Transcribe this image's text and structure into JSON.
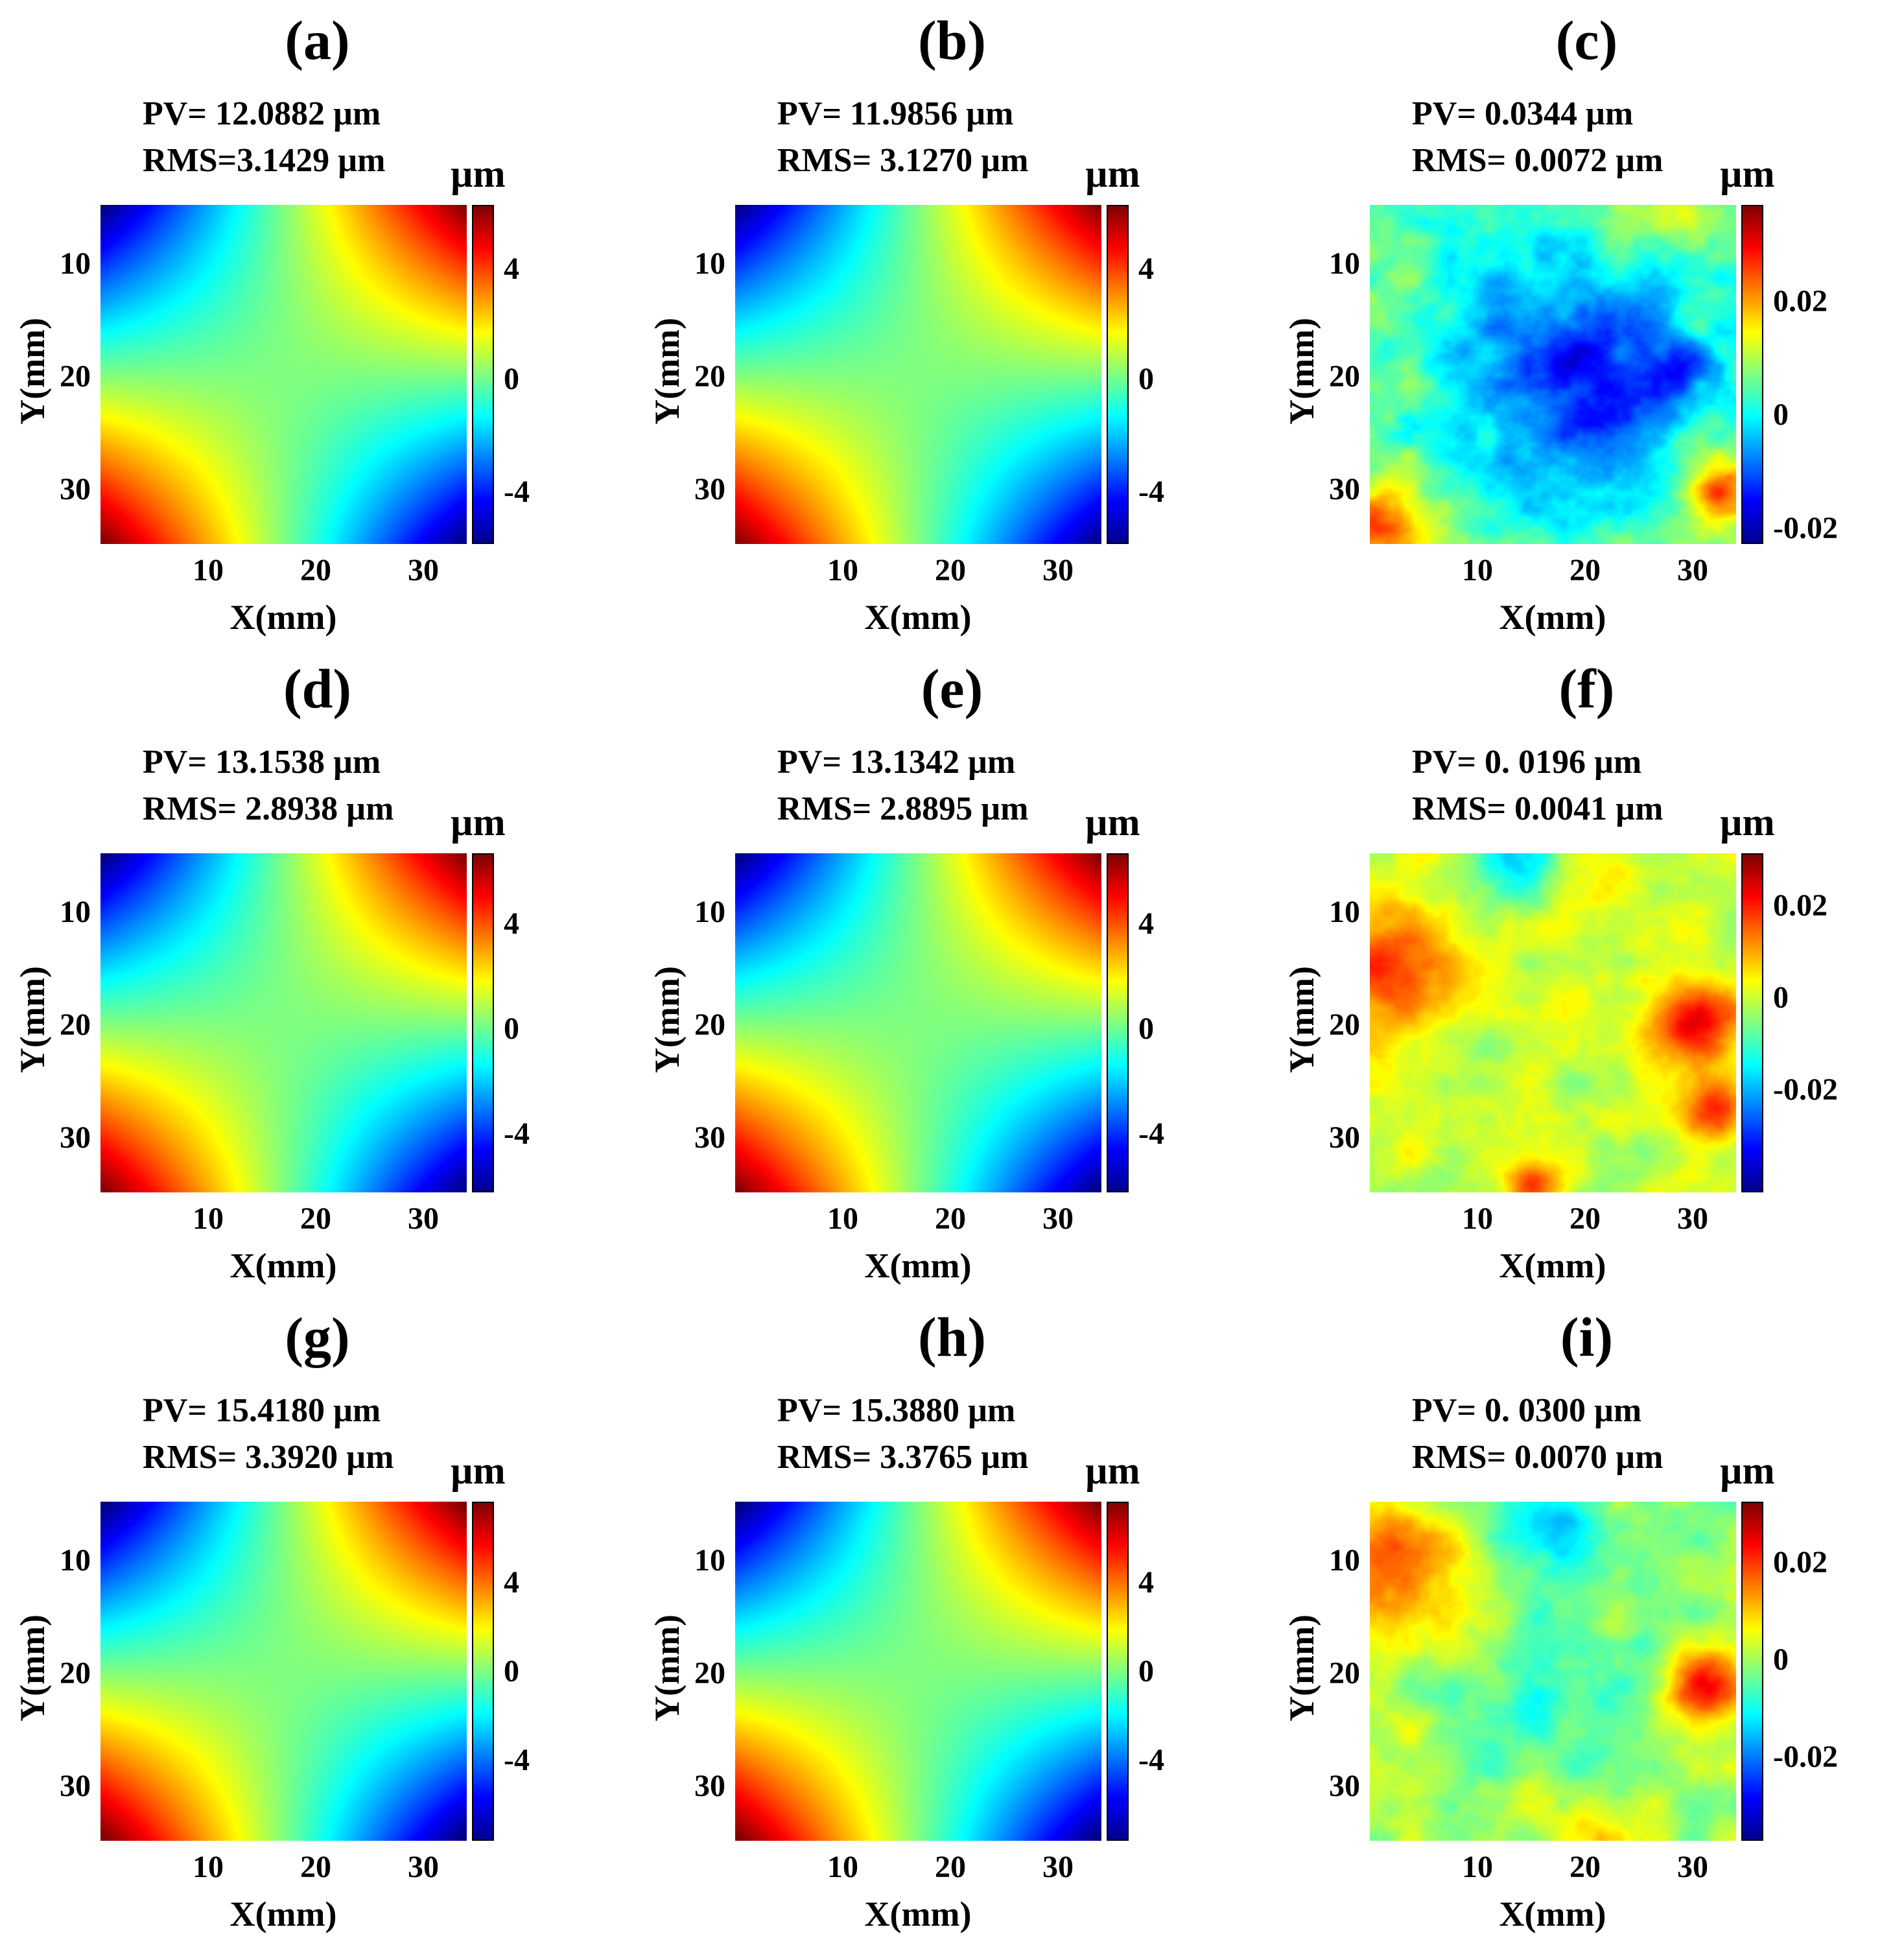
{
  "chart_data": [
    {
      "type": "heatmap",
      "panel": "(a)",
      "pv": "PV= 12.0882 µm",
      "rms": "RMS=3.1429 µm",
      "colorbar_unit": "µm",
      "xlabel": "X(mm)",
      "ylabel": "Y(mm)",
      "xlim": [
        0,
        34
      ],
      "ylim": [
        35,
        5
      ],
      "x_ticks": [
        "10",
        "20",
        "30"
      ],
      "y_ticks": [
        "10",
        "20",
        "30"
      ],
      "colorbar_ticks": [
        "4",
        "0",
        "-4"
      ],
      "colorbar_range": [
        -6,
        6
      ],
      "pattern": "saddle",
      "amplitude": 6.04
    },
    {
      "type": "heatmap",
      "panel": "(b)",
      "pv": "PV= 11.9856 µm",
      "rms": "RMS= 3.1270 µm",
      "colorbar_unit": "µm",
      "xlabel": "X(mm)",
      "ylabel": "Y(mm)",
      "xlim": [
        0,
        34
      ],
      "ylim": [
        35,
        5
      ],
      "x_ticks": [
        "10",
        "20",
        "30"
      ],
      "y_ticks": [
        "10",
        "20",
        "30"
      ],
      "colorbar_ticks": [
        "4",
        "0",
        "-4"
      ],
      "colorbar_range": [
        -6,
        6
      ],
      "pattern": "saddle",
      "amplitude": 5.99
    },
    {
      "type": "heatmap",
      "panel": "(c)",
      "pv": "PV= 0.0344 µm",
      "rms": "RMS= 0.0072 µm",
      "colorbar_unit": "µm",
      "xlabel": "X(mm)",
      "ylabel": "Y(mm)",
      "xlim": [
        0,
        34
      ],
      "ylim": [
        35,
        5
      ],
      "x_ticks": [
        "10",
        "20",
        "30"
      ],
      "y_ticks": [
        "10",
        "20",
        "30"
      ],
      "colorbar_ticks": [
        "0.02",
        "0",
        "-0.02"
      ],
      "colorbar_range": [
        -0.025,
        0.035
      ],
      "pattern": "residual-c"
    },
    {
      "type": "heatmap",
      "panel": "(d)",
      "pv": "PV= 13.1538 µm",
      "rms": "RMS= 2.8938 µm",
      "colorbar_unit": "µm",
      "xlabel": "X(mm)",
      "ylabel": "Y(mm)",
      "xlim": [
        0,
        34
      ],
      "ylim": [
        35,
        5
      ],
      "x_ticks": [
        "10",
        "20",
        "30"
      ],
      "y_ticks": [
        "10",
        "20",
        "30"
      ],
      "colorbar_ticks": [
        "4",
        "0",
        "-4"
      ],
      "colorbar_range": [
        -6.5,
        6.5
      ],
      "pattern": "saddle",
      "amplitude": 6.58
    },
    {
      "type": "heatmap",
      "panel": "(e)",
      "pv": "PV= 13.1342 µm",
      "rms": "RMS= 2.8895 µm",
      "colorbar_unit": "µm",
      "xlabel": "X(mm)",
      "ylabel": "Y(mm)",
      "xlim": [
        0,
        34
      ],
      "ylim": [
        35,
        5
      ],
      "x_ticks": [
        "10",
        "20",
        "30"
      ],
      "y_ticks": [
        "10",
        "20",
        "30"
      ],
      "colorbar_ticks": [
        "4",
        "0",
        "-4"
      ],
      "colorbar_range": [
        -6.5,
        6.5
      ],
      "pattern": "saddle",
      "amplitude": 6.57
    },
    {
      "type": "heatmap",
      "panel": "(f)",
      "pv": "PV= 0. 0196 µm",
      "rms": "RMS= 0.0041 µm",
      "colorbar_unit": "µm",
      "xlabel": "X(mm)",
      "ylabel": "Y(mm)",
      "xlim": [
        0,
        34
      ],
      "ylim": [
        35,
        5
      ],
      "x_ticks": [
        "10",
        "20",
        "30"
      ],
      "y_ticks": [
        "10",
        "20",
        "30"
      ],
      "colorbar_ticks": [
        "0.02",
        "0",
        "-0.02"
      ],
      "colorbar_range": [
        -0.04,
        0.035
      ],
      "pattern": "residual-f"
    },
    {
      "type": "heatmap",
      "panel": "(g)",
      "pv": "PV= 15.4180 µm",
      "rms": "RMS= 3.3920 µm",
      "colorbar_unit": "µm",
      "xlabel": "X(mm)",
      "ylabel": "Y(mm)",
      "xlim": [
        0,
        34
      ],
      "ylim": [
        35,
        5
      ],
      "x_ticks": [
        "10",
        "20",
        "30"
      ],
      "y_ticks": [
        "10",
        "20",
        "30"
      ],
      "colorbar_ticks": [
        "4",
        "0",
        "-4"
      ],
      "colorbar_range": [
        -7.5,
        7.5
      ],
      "pattern": "saddle",
      "amplitude": 7.71
    },
    {
      "type": "heatmap",
      "panel": "(h)",
      "pv": "PV= 15.3880 µm",
      "rms": "RMS= 3.3765 µm",
      "colorbar_unit": "µm",
      "xlabel": "X(mm)",
      "ylabel": "Y(mm)",
      "xlim": [
        0,
        34
      ],
      "ylim": [
        35,
        5
      ],
      "x_ticks": [
        "10",
        "20",
        "30"
      ],
      "y_ticks": [
        "10",
        "20",
        "30"
      ],
      "colorbar_ticks": [
        "4",
        "0",
        "-4"
      ],
      "colorbar_range": [
        -7.5,
        7.5
      ],
      "pattern": "saddle",
      "amplitude": 7.69
    },
    {
      "type": "heatmap",
      "panel": "(i)",
      "pv": "PV= 0. 0300 µm",
      "rms": "RMS= 0.0070 µm",
      "colorbar_unit": "µm",
      "xlabel": "X(mm)",
      "ylabel": "Y(mm)",
      "xlim": [
        0,
        34
      ],
      "ylim": [
        35,
        5
      ],
      "x_ticks": [
        "10",
        "20",
        "30"
      ],
      "y_ticks": [
        "10",
        "20",
        "30"
      ],
      "colorbar_ticks": [
        "0.02",
        "0",
        "-0.02"
      ],
      "colorbar_range": [
        -0.035,
        0.035
      ],
      "pattern": "residual-i"
    }
  ]
}
